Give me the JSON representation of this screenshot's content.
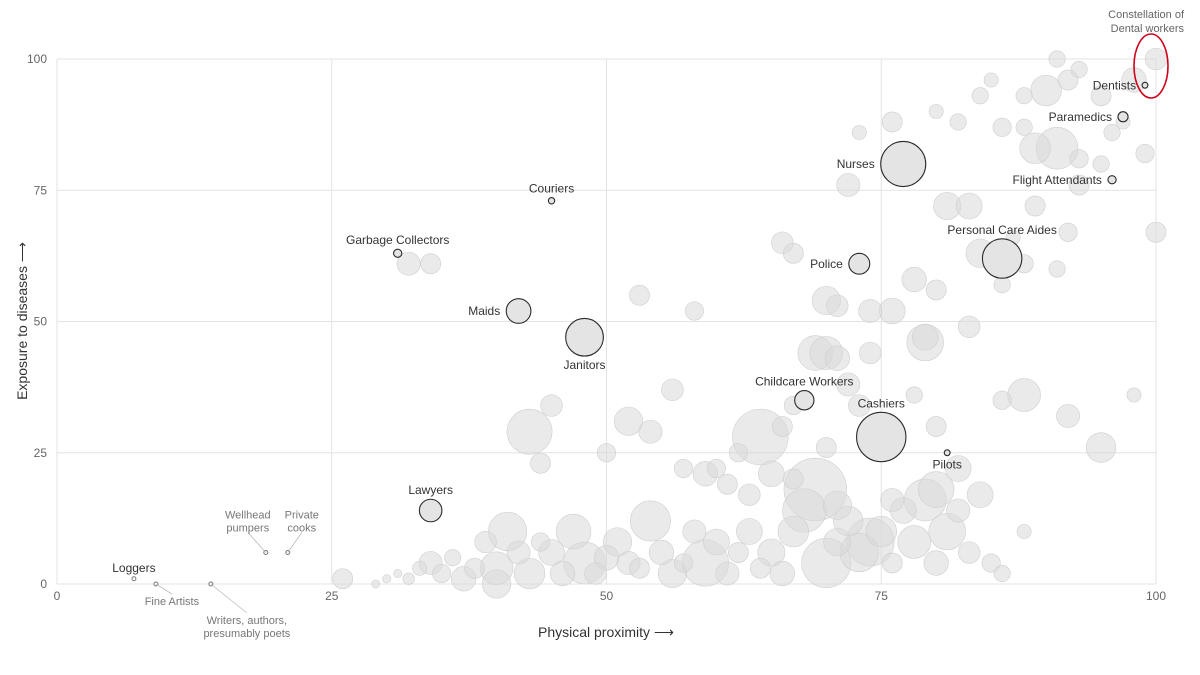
{
  "chart_data": {
    "type": "scatter",
    "xlabel": "Physical proximity ⟶",
    "ylabel": "Exposure to diseases ⟶",
    "xlim": [
      0,
      100
    ],
    "ylim": [
      0,
      100
    ],
    "xticks": [
      "0",
      "25",
      "50",
      "75",
      "100"
    ],
    "yticks": [
      "0",
      "25",
      "50",
      "75",
      "100"
    ],
    "grid": true,
    "annotation": "Constellation of Dental workers",
    "annotation_highlight_color": "#d0021b",
    "highlighted": [
      {
        "label": "Dentists",
        "x": 99,
        "y": 95,
        "size": 0.05
      },
      {
        "label": "Paramedics",
        "x": 97,
        "y": 89,
        "size": 0.15
      },
      {
        "label": "Flight Attendants",
        "x": 96,
        "y": 77,
        "size": 0.1
      },
      {
        "label": "Nurses",
        "x": 77,
        "y": 80,
        "size": 3.0
      },
      {
        "label": "Couriers",
        "x": 45,
        "y": 73,
        "size": 0.06
      },
      {
        "label": "Garbage Collectors",
        "x": 31,
        "y": 63,
        "size": 0.1
      },
      {
        "label": "Personal Care Aides",
        "x": 86,
        "y": 62,
        "size": 2.3
      },
      {
        "label": "Police",
        "x": 73,
        "y": 61,
        "size": 0.65
      },
      {
        "label": "Maids",
        "x": 42,
        "y": 52,
        "size": 0.9
      },
      {
        "label": "Janitors",
        "x": 48,
        "y": 47,
        "size": 2.1
      },
      {
        "label": "Childcare Workers",
        "x": 68,
        "y": 35,
        "size": 0.55
      },
      {
        "label": "Cashiers",
        "x": 75,
        "y": 28,
        "size": 3.6
      },
      {
        "label": "Pilots",
        "x": 81,
        "y": 25,
        "size": 0.05
      },
      {
        "label": "Lawyers",
        "x": 34,
        "y": 14,
        "size": 0.75
      }
    ],
    "minor_labels": [
      {
        "label": "Loggers",
        "x": 7,
        "y": 1
      },
      {
        "label": "Fine Artists",
        "x": 9,
        "y": 0
      },
      {
        "label": "Wellhead pumpers",
        "x": 19,
        "y": 6
      },
      {
        "label": "Private cooks",
        "x": 21,
        "y": 6
      },
      {
        "label": "Writers, authors, presumably poets",
        "x": 14,
        "y": 0
      }
    ],
    "background_points": [
      [
        26,
        1,
        0.6
      ],
      [
        29,
        0,
        0.1
      ],
      [
        30,
        1,
        0.1
      ],
      [
        31,
        2,
        0.1
      ],
      [
        32,
        1,
        0.2
      ],
      [
        33,
        3,
        0.3
      ],
      [
        34,
        4,
        0.8
      ],
      [
        35,
        2,
        0.5
      ],
      [
        36,
        5,
        0.4
      ],
      [
        37,
        1,
        0.9
      ],
      [
        38,
        3,
        0.6
      ],
      [
        39,
        8,
        0.7
      ],
      [
        40,
        3,
        1.6
      ],
      [
        40,
        0,
        1.2
      ],
      [
        41,
        10,
        2.2
      ],
      [
        42,
        6,
        0.8
      ],
      [
        43,
        2,
        1.4
      ],
      [
        44,
        8,
        0.5
      ],
      [
        45,
        6,
        1.0
      ],
      [
        46,
        2,
        0.9
      ],
      [
        47,
        10,
        1.8
      ],
      [
        48,
        4,
        2.6
      ],
      [
        49,
        2,
        0.7
      ],
      [
        50,
        5,
        0.9
      ],
      [
        51,
        8,
        1.2
      ],
      [
        52,
        4,
        0.8
      ],
      [
        53,
        3,
        0.6
      ],
      [
        54,
        12,
        2.4
      ],
      [
        55,
        6,
        0.9
      ],
      [
        56,
        2,
        1.2
      ],
      [
        57,
        4,
        0.5
      ],
      [
        58,
        10,
        0.8
      ],
      [
        59,
        4,
        3.2
      ],
      [
        60,
        8,
        1.0
      ],
      [
        61,
        2,
        0.8
      ],
      [
        62,
        6,
        0.6
      ],
      [
        63,
        10,
        1.0
      ],
      [
        64,
        3,
        0.6
      ],
      [
        65,
        6,
        1.1
      ],
      [
        66,
        2,
        0.9
      ],
      [
        67,
        10,
        1.4
      ],
      [
        68,
        14,
        2.8
      ],
      [
        69,
        18,
        5.8
      ],
      [
        70,
        4,
        3.6
      ],
      [
        71,
        8,
        1.1
      ],
      [
        72,
        12,
        1.3
      ],
      [
        73,
        6,
        2.2
      ],
      [
        74,
        8,
        3.4
      ],
      [
        75,
        10,
        1.4
      ],
      [
        76,
        4,
        0.6
      ],
      [
        77,
        14,
        1.0
      ],
      [
        78,
        8,
        1.6
      ],
      [
        79,
        16,
        2.6
      ],
      [
        80,
        4,
        0.9
      ],
      [
        81,
        10,
        2.0
      ],
      [
        82,
        14,
        0.8
      ],
      [
        83,
        6,
        0.7
      ],
      [
        85,
        4,
        0.5
      ],
      [
        86,
        2,
        0.4
      ],
      [
        88,
        10,
        0.3
      ],
      [
        43,
        29,
        3.0
      ],
      [
        45,
        34,
        0.7
      ],
      [
        44,
        23,
        0.6
      ],
      [
        50,
        25,
        0.5
      ],
      [
        52,
        31,
        1.2
      ],
      [
        54,
        29,
        0.8
      ],
      [
        56,
        37,
        0.7
      ],
      [
        60,
        22,
        0.5
      ],
      [
        62,
        25,
        0.5
      ],
      [
        64,
        28,
        4.6
      ],
      [
        66,
        30,
        0.6
      ],
      [
        67,
        34,
        0.5
      ],
      [
        70,
        26,
        0.6
      ],
      [
        72,
        38,
        0.8
      ],
      [
        73,
        34,
        0.7
      ],
      [
        78,
        36,
        0.4
      ],
      [
        80,
        30,
        0.6
      ],
      [
        82,
        22,
        1.0
      ],
      [
        86,
        35,
        0.5
      ],
      [
        88,
        36,
        1.6
      ],
      [
        92,
        32,
        0.8
      ],
      [
        95,
        26,
        1.3
      ],
      [
        98,
        36,
        0.3
      ],
      [
        57,
        22,
        0.5
      ],
      [
        59,
        21,
        0.9
      ],
      [
        61,
        19,
        0.6
      ],
      [
        63,
        17,
        0.7
      ],
      [
        65,
        21,
        1.0
      ],
      [
        67,
        20,
        0.6
      ],
      [
        71,
        15,
        1.2
      ],
      [
        76,
        16,
        0.8
      ],
      [
        80,
        18,
        1.9
      ],
      [
        84,
        17,
        1.0
      ],
      [
        70,
        44,
        1.6
      ],
      [
        69,
        44,
        1.8
      ],
      [
        71,
        43,
        0.9
      ],
      [
        74,
        44,
        0.7
      ],
      [
        79,
        47,
        1.0
      ],
      [
        79,
        46,
        2.0
      ],
      [
        83,
        49,
        0.7
      ],
      [
        74,
        52,
        0.8
      ],
      [
        76,
        52,
        1.0
      ],
      [
        78,
        58,
        0.9
      ],
      [
        80,
        56,
        0.6
      ],
      [
        84,
        63,
        1.2
      ],
      [
        86,
        57,
        0.4
      ],
      [
        88,
        61,
        0.5
      ],
      [
        91,
        60,
        0.4
      ],
      [
        70,
        54,
        1.2
      ],
      [
        71,
        53,
        0.7
      ],
      [
        66,
        65,
        0.7
      ],
      [
        67,
        63,
        0.6
      ],
      [
        58,
        52,
        0.5
      ],
      [
        53,
        55,
        0.6
      ],
      [
        49,
        47,
        0.4
      ],
      [
        34,
        61,
        0.6
      ],
      [
        32,
        61,
        0.8
      ],
      [
        81,
        72,
        1.1
      ],
      [
        83,
        72,
        1.0
      ],
      [
        89,
        72,
        0.6
      ],
      [
        92,
        67,
        0.5
      ],
      [
        93,
        76,
        0.6
      ],
      [
        100,
        67,
        0.6
      ],
      [
        87,
        66,
        0.3
      ],
      [
        72,
        76,
        0.8
      ],
      [
        76,
        88,
        0.6
      ],
      [
        73,
        86,
        0.3
      ],
      [
        86,
        87,
        0.5
      ],
      [
        88,
        87,
        0.4
      ],
      [
        91,
        83,
        2.6
      ],
      [
        89,
        83,
        1.4
      ],
      [
        93,
        81,
        0.5
      ],
      [
        95,
        80,
        0.4
      ],
      [
        99,
        82,
        0.5
      ],
      [
        90,
        94,
        1.4
      ],
      [
        92,
        96,
        0.6
      ],
      [
        93,
        98,
        0.4
      ],
      [
        95,
        93,
        0.6
      ],
      [
        98,
        96,
        0.9
      ],
      [
        100,
        100,
        0.7
      ],
      [
        91,
        100,
        0.4
      ],
      [
        96,
        86,
        0.4
      ],
      [
        88,
        93,
        0.4
      ],
      [
        84,
        93,
        0.4
      ],
      [
        85,
        96,
        0.3
      ],
      [
        82,
        88,
        0.4
      ],
      [
        80,
        90,
        0.3
      ],
      [
        97,
        88,
        0.3
      ]
    ]
  }
}
